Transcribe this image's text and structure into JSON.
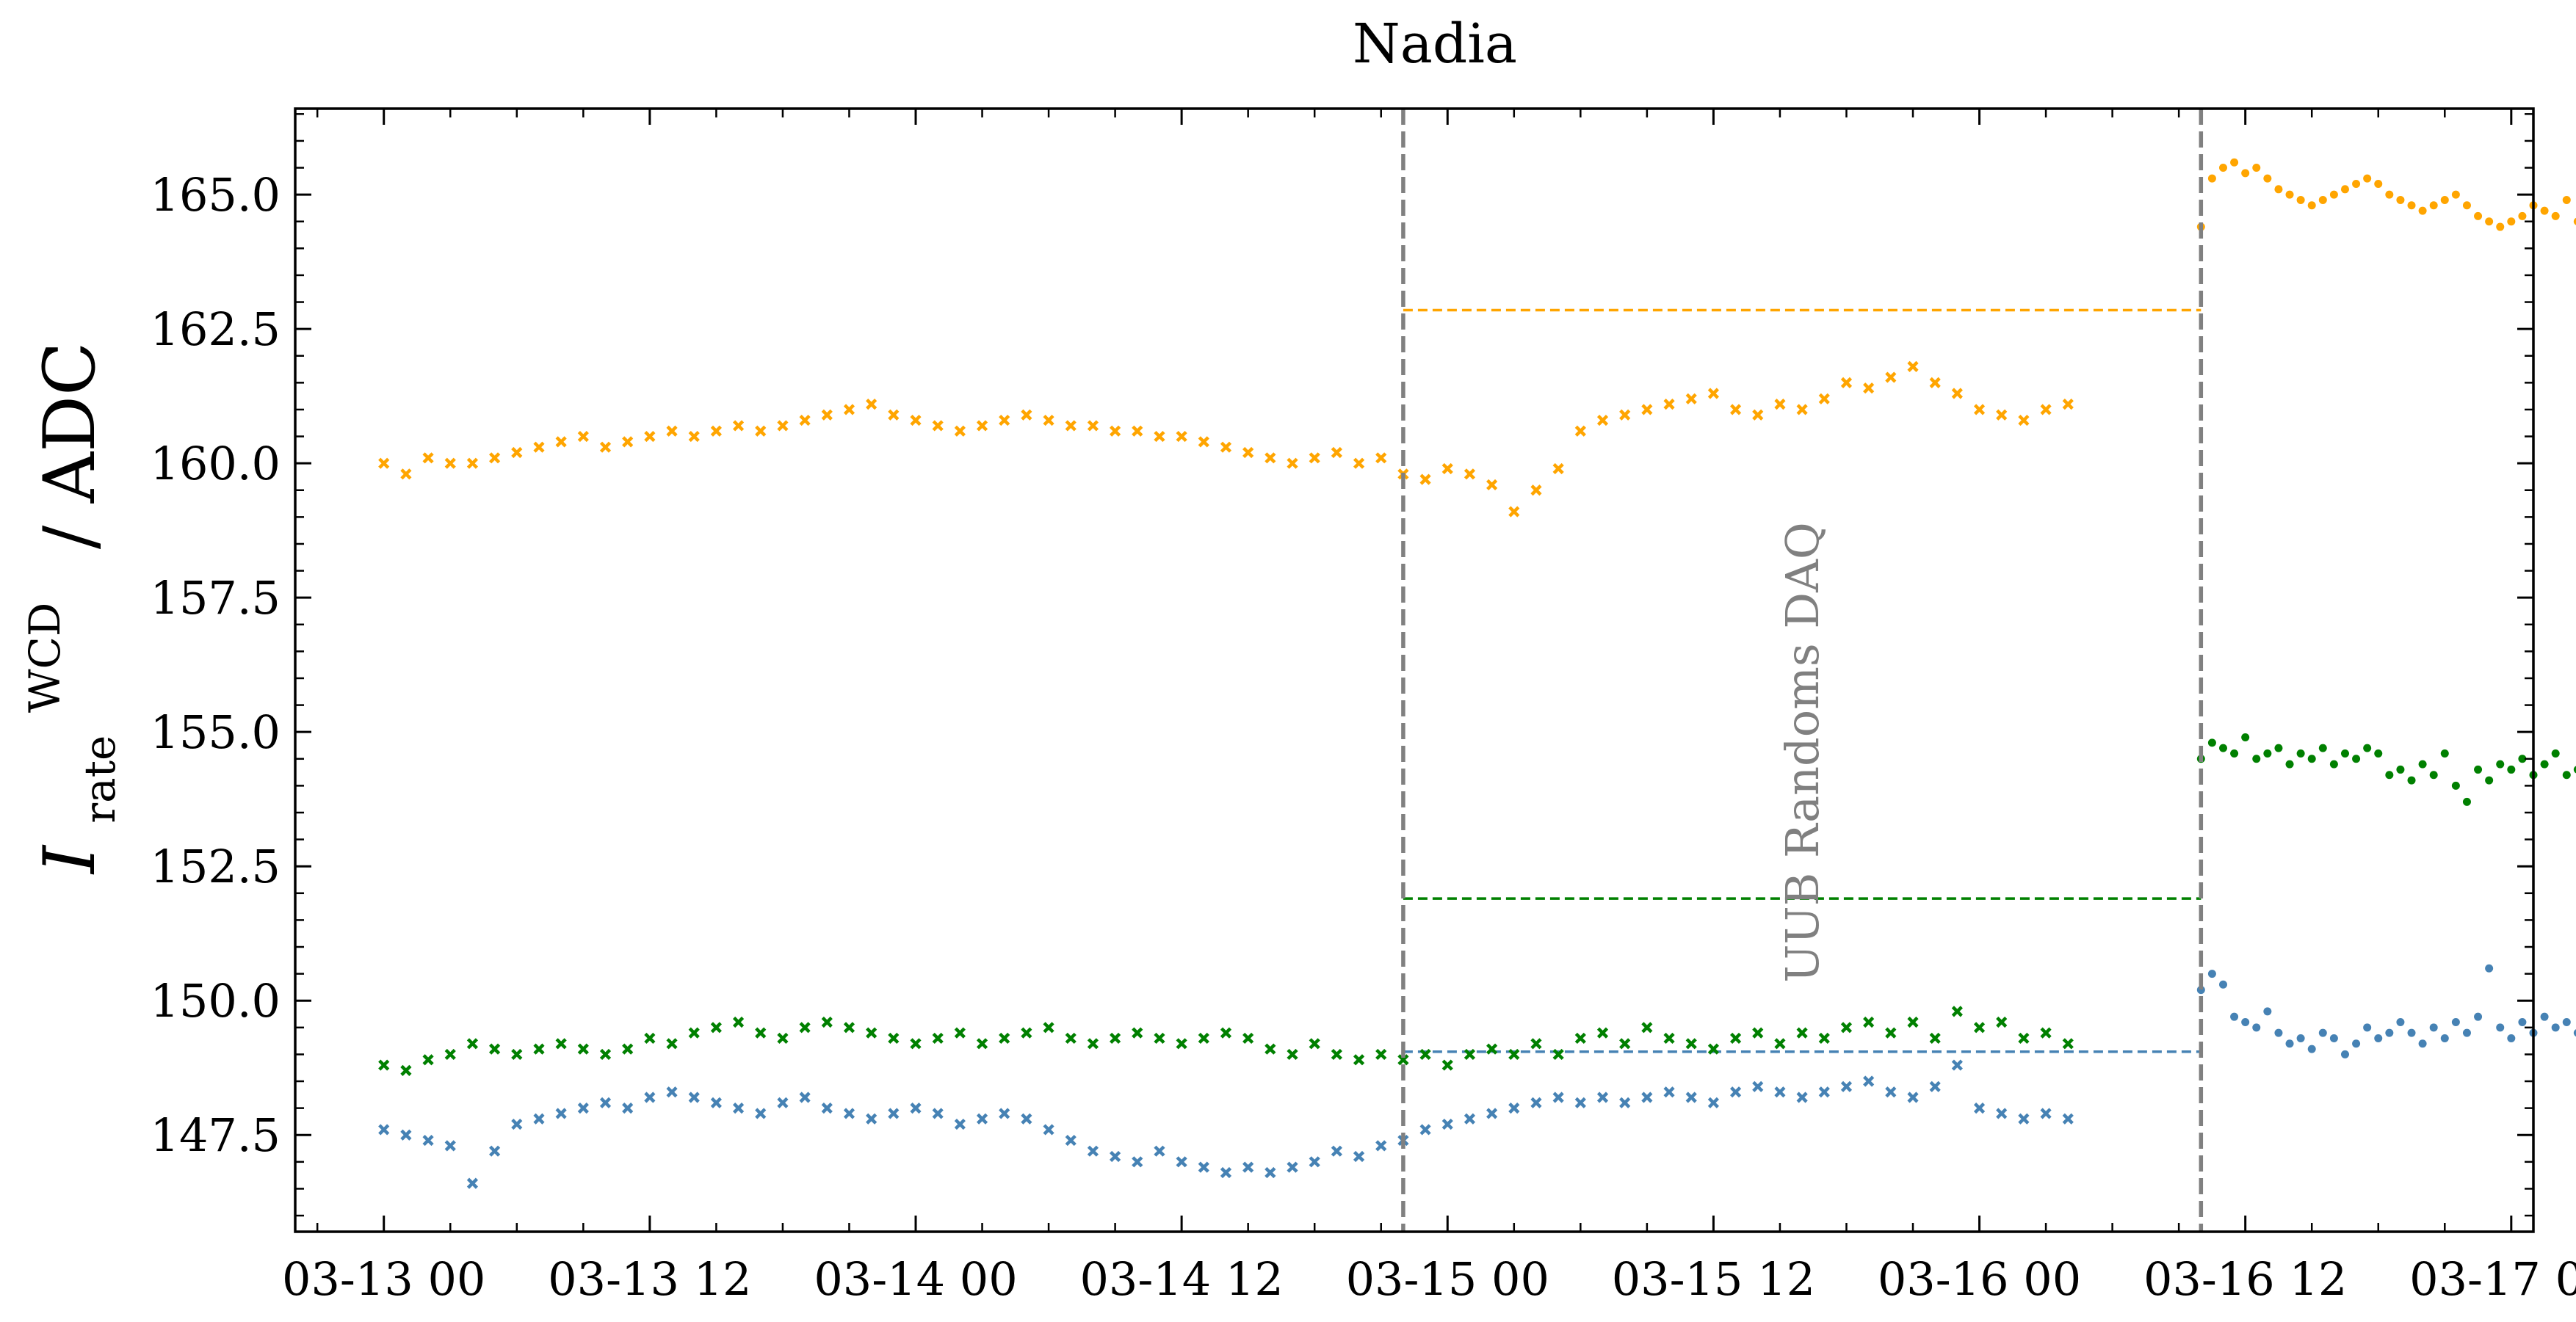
{
  "chart_data": {
    "type": "scatter",
    "title": "Nadia",
    "ylabel": {
      "symbol": "I",
      "subscript": "rate",
      "superscript": "WCD",
      "unit": "/ ADC"
    },
    "xlabel": "",
    "x_range": [
      "2023-03-12T20:00",
      "2023-03-17T01:00"
    ],
    "ylim": [
      145.7,
      166.6
    ],
    "x_ticks": [
      {
        "t": "2023-03-13T00:00",
        "label": "03-13 00"
      },
      {
        "t": "2023-03-13T12:00",
        "label": "03-13 12"
      },
      {
        "t": "2023-03-14T00:00",
        "label": "03-14 00"
      },
      {
        "t": "2023-03-14T12:00",
        "label": "03-14 12"
      },
      {
        "t": "2023-03-15T00:00",
        "label": "03-15 00"
      },
      {
        "t": "2023-03-15T12:00",
        "label": "03-15 12"
      },
      {
        "t": "2023-03-16T00:00",
        "label": "03-16 00"
      },
      {
        "t": "2023-03-16T12:00",
        "label": "03-16 12"
      },
      {
        "t": "2023-03-17T00:00",
        "label": "03-17 00"
      }
    ],
    "y_ticks": [
      147.5,
      150.0,
      152.5,
      155.0,
      157.5,
      160.0,
      162.5,
      165.0
    ],
    "y_tick_labels": [
      "147.5",
      "150.0",
      "152.5",
      "155.0",
      "157.5",
      "160.0",
      "162.5",
      "165.0"
    ],
    "grid": false,
    "colors": {
      "orange": "#ffa500",
      "green": "#008000",
      "blue": "#4682b4",
      "separator": "#808080"
    },
    "vlines": [
      "2023-03-14T22:00",
      "2023-03-16T10:00"
    ],
    "annotation": "UUB Randoms DAQ",
    "reference_lines": [
      {
        "color": "orange",
        "y": 162.85,
        "x_start": "2023-03-14T22:00",
        "x_end": "2023-03-16T10:00"
      },
      {
        "color": "green",
        "y": 151.9,
        "x_start": "2023-03-14T22:00",
        "x_end": "2023-03-16T10:00"
      },
      {
        "color": "blue",
        "y": 149.05,
        "x_start": "2023-03-14T22:00",
        "x_end": "2023-03-16T10:00"
      }
    ],
    "series": [
      {
        "color": "orange",
        "marker": "x",
        "x_start": "2023-03-13T00:00",
        "x_step_hours": 1,
        "y": [
          160.0,
          159.8,
          160.1,
          160.0,
          160.0,
          160.1,
          160.2,
          160.3,
          160.4,
          160.5,
          160.3,
          160.4,
          160.5,
          160.6,
          160.5,
          160.6,
          160.7,
          160.6,
          160.7,
          160.8,
          160.9,
          161.0,
          161.1,
          160.9,
          160.8,
          160.7,
          160.6,
          160.7,
          160.8,
          160.9,
          160.8,
          160.7,
          160.7,
          160.6,
          160.6,
          160.5,
          160.5,
          160.4,
          160.3,
          160.2,
          160.1,
          160.0,
          160.1,
          160.2,
          160.0,
          160.1,
          159.8,
          159.7,
          159.9,
          159.8,
          159.6,
          159.1,
          159.5,
          159.9,
          160.6,
          160.8,
          160.9,
          161.0,
          161.1,
          161.2,
          161.3,
          161.0,
          160.9,
          161.1,
          161.0,
          161.2,
          161.5,
          161.4,
          161.6,
          161.8,
          161.5,
          161.3,
          161.0,
          160.9,
          160.8,
          161.0,
          161.1
        ]
      },
      {
        "color": "orange",
        "marker": "dot",
        "x_start": "2023-03-16T10:00",
        "x_step_hours": 0.5,
        "y": [
          164.4,
          165.3,
          165.5,
          165.6,
          165.4,
          165.5,
          165.3,
          165.1,
          165.0,
          164.9,
          164.8,
          164.9,
          165.0,
          165.1,
          165.2,
          165.3,
          165.2,
          165.0,
          164.9,
          164.8,
          164.7,
          164.8,
          164.9,
          165.0,
          164.8,
          164.6,
          164.5,
          164.4,
          164.5,
          164.6,
          164.8,
          164.7,
          164.6,
          164.9,
          164.5,
          164.2
        ]
      },
      {
        "color": "green",
        "marker": "x",
        "x_start": "2023-03-13T00:00",
        "x_step_hours": 1,
        "y": [
          148.8,
          148.7,
          148.9,
          149.0,
          149.2,
          149.1,
          149.0,
          149.1,
          149.2,
          149.1,
          149.0,
          149.1,
          149.3,
          149.2,
          149.4,
          149.5,
          149.6,
          149.4,
          149.3,
          149.5,
          149.6,
          149.5,
          149.4,
          149.3,
          149.2,
          149.3,
          149.4,
          149.2,
          149.3,
          149.4,
          149.5,
          149.3,
          149.2,
          149.3,
          149.4,
          149.3,
          149.2,
          149.3,
          149.4,
          149.3,
          149.1,
          149.0,
          149.2,
          149.0,
          148.9,
          149.0,
          148.9,
          149.0,
          148.8,
          149.0,
          149.1,
          149.0,
          149.2,
          149.0,
          149.3,
          149.4,
          149.2,
          149.5,
          149.3,
          149.2,
          149.1,
          149.3,
          149.4,
          149.2,
          149.4,
          149.3,
          149.5,
          149.6,
          149.4,
          149.6,
          149.3,
          149.8,
          149.5,
          149.6,
          149.3,
          149.4,
          149.2
        ]
      },
      {
        "color": "green",
        "marker": "dot",
        "x_start": "2023-03-16T10:00",
        "x_step_hours": 0.5,
        "y": [
          154.5,
          154.8,
          154.7,
          154.6,
          154.9,
          154.5,
          154.6,
          154.7,
          154.4,
          154.6,
          154.5,
          154.7,
          154.4,
          154.6,
          154.5,
          154.7,
          154.6,
          154.2,
          154.3,
          154.1,
          154.4,
          154.2,
          154.6,
          154.0,
          153.7,
          154.3,
          154.1,
          154.4,
          154.3,
          154.5,
          154.2,
          154.4,
          154.6,
          154.2,
          154.3,
          154.4
        ]
      },
      {
        "color": "blue",
        "marker": "x",
        "x_start": "2023-03-13T00:00",
        "x_step_hours": 1,
        "y": [
          147.6,
          147.5,
          147.4,
          147.3,
          146.6,
          147.2,
          147.7,
          147.8,
          147.9,
          148.0,
          148.1,
          148.0,
          148.2,
          148.3,
          148.2,
          148.1,
          148.0,
          147.9,
          148.1,
          148.2,
          148.0,
          147.9,
          147.8,
          147.9,
          148.0,
          147.9,
          147.7,
          147.8,
          147.9,
          147.8,
          147.6,
          147.4,
          147.2,
          147.1,
          147.0,
          147.2,
          147.0,
          146.9,
          146.8,
          146.9,
          146.8,
          146.9,
          147.0,
          147.2,
          147.1,
          147.3,
          147.4,
          147.6,
          147.7,
          147.8,
          147.9,
          148.0,
          148.1,
          148.2,
          148.1,
          148.2,
          148.1,
          148.2,
          148.3,
          148.2,
          148.1,
          148.3,
          148.4,
          148.3,
          148.2,
          148.3,
          148.4,
          148.5,
          148.3,
          148.2,
          148.4,
          148.8,
          148.0,
          147.9,
          147.8,
          147.9,
          147.8
        ]
      },
      {
        "color": "blue",
        "marker": "dot",
        "x_start": "2023-03-16T10:00",
        "x_step_hours": 0.5,
        "y": [
          150.2,
          150.5,
          150.3,
          149.7,
          149.6,
          149.5,
          149.8,
          149.4,
          149.2,
          149.3,
          149.1,
          149.4,
          149.3,
          149.0,
          149.2,
          149.5,
          149.3,
          149.4,
          149.6,
          149.4,
          149.2,
          149.5,
          149.3,
          149.6,
          149.4,
          149.7,
          150.6,
          149.5,
          149.3,
          149.6,
          149.4,
          149.7,
          149.5,
          149.6,
          149.4,
          149.7
        ]
      }
    ]
  }
}
